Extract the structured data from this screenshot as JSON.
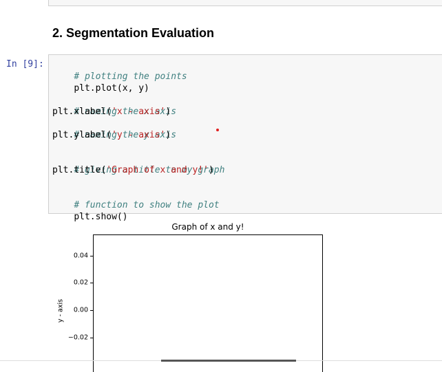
{
  "markdown": {
    "heading": "2. Segmentation Evaluation"
  },
  "cell": {
    "prompt": "In [9]:",
    "lines": [
      {
        "kind": "comment",
        "text": "# plotting the points"
      },
      {
        "kind": "code",
        "text": "plt.plot(x, y)"
      },
      {
        "kind": "blank",
        "text": ""
      },
      {
        "kind": "comment",
        "text": "# naming the x axis"
      },
      {
        "kind": "code",
        "pre": "plt.xlabel(",
        "str": "'x - axis'",
        "post": ")"
      },
      {
        "kind": "comment",
        "text": "# naming the y axis"
      },
      {
        "kind": "code",
        "pre": "plt.ylabel(",
        "str": "'y - axis'",
        "post": ")"
      },
      {
        "kind": "blank",
        "text": ""
      },
      {
        "kind": "comment",
        "text": "# giving a title to my graph"
      },
      {
        "kind": "code",
        "pre": "plt.title(",
        "str": "'Graph of x and y!'",
        "post": ")"
      },
      {
        "kind": "blank",
        "text": ""
      },
      {
        "kind": "comment",
        "text": "# function to show the plot"
      },
      {
        "kind": "code",
        "text": "plt.show()"
      }
    ]
  },
  "chart_data": {
    "type": "line",
    "title": "Graph of x and y!",
    "ylabel": "y - axis",
    "xlabel": "",
    "yticks": [
      0.04,
      0.02,
      0.0,
      -0.02
    ],
    "ytick_labels": [
      "0.04",
      "0.02",
      "0.00",
      "−0.02"
    ],
    "series": []
  },
  "colors": {
    "prompt": "#303f9f",
    "comment": "#408080",
    "string": "#ba2121",
    "cell_bg": "#f7f7f7"
  }
}
